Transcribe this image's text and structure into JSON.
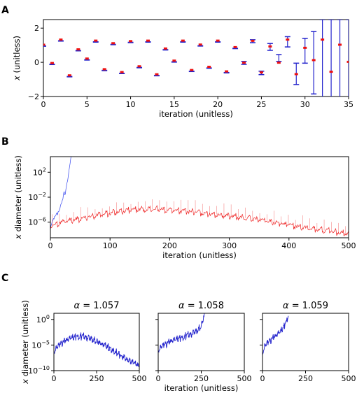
{
  "chart_data": [
    {
      "panel_label": "A",
      "type": "interval",
      "xlabel": "iteration (unitless)",
      "ylabel": "x (unitless)",
      "xlim": [
        0,
        35
      ],
      "ylim": [
        -2,
        2.5
      ],
      "xticks": [
        "0",
        "5",
        "10",
        "15",
        "20",
        "25",
        "30",
        "35"
      ],
      "yticks": [
        "−2",
        "0",
        "2"
      ],
      "colors": {
        "interval": "#2222cc",
        "point": "#ee1111"
      },
      "series": [
        {
          "name": "",
          "x": [
            0,
            1,
            2,
            3,
            4,
            5,
            6,
            7,
            8,
            9,
            10,
            11,
            12,
            13,
            14,
            15,
            16,
            17,
            18,
            19,
            20,
            21,
            22,
            23,
            24,
            25,
            26,
            27,
            28,
            29,
            30,
            31,
            32,
            33,
            34,
            35
          ],
          "lo": [
            0.98,
            -0.12,
            1.26,
            -0.84,
            0.69,
            0.15,
            1.2,
            -0.47,
            1.05,
            -0.64,
            1.17,
            -0.3,
            1.2,
            -0.77,
            0.74,
            0.03,
            1.2,
            -0.52,
            0.97,
            -0.33,
            1.2,
            -0.6,
            0.82,
            -0.12,
            1.15,
            -0.72,
            0.7,
            0.05,
            0.9,
            -1.3,
            -0.05,
            -1.85,
            -2.5,
            -2.5,
            -2.5,
            -2.5
          ],
          "hi": [
            1.02,
            -0.02,
            1.34,
            -0.74,
            0.77,
            0.23,
            1.28,
            -0.39,
            1.13,
            -0.56,
            1.25,
            -0.22,
            1.28,
            -0.69,
            0.82,
            0.11,
            1.28,
            -0.44,
            1.05,
            -0.25,
            1.28,
            -0.52,
            0.9,
            0.05,
            1.32,
            -0.52,
            1.1,
            0.45,
            1.5,
            -0.05,
            1.4,
            1.8,
            2.5,
            2.5,
            2.5,
            2.5
          ],
          "mid": [
            1.0,
            -0.07,
            1.3,
            -0.79,
            0.73,
            0.19,
            1.24,
            -0.43,
            1.09,
            -0.6,
            1.21,
            -0.26,
            1.24,
            -0.73,
            0.78,
            0.07,
            1.24,
            -0.48,
            1.01,
            -0.29,
            1.24,
            -0.56,
            0.86,
            -0.05,
            1.23,
            -0.62,
            0.9,
            -0.05,
            1.3,
            -0.72,
            0.82,
            0.1,
            1.3,
            -0.58,
            1.0,
            0.0
          ]
        }
      ]
    },
    {
      "panel_label": "B",
      "type": "line",
      "xlabel": "iteration (unitless)",
      "ylabel": "x diameter (unitless)",
      "xlim": [
        0,
        500
      ],
      "yscale": "log",
      "ylim_log10": [
        -8.5,
        4.5
      ],
      "xticks": [
        "0",
        "100",
        "200",
        "300",
        "400",
        "500"
      ],
      "ytick_labels": [
        "10^2",
        "10^-2",
        "10^-6"
      ],
      "ytick_log10": [
        2,
        -2,
        -6
      ],
      "colors": {
        "blue_series": "#3344ee",
        "red_series": "#ee2222"
      },
      "series": [
        {
          "name": "",
          "x": [
            0,
            5,
            10,
            15,
            20,
            25,
            30,
            35
          ],
          "log10_y": [
            -6.6,
            -5.4,
            -4.8,
            -3.8,
            -2.6,
            -1.0,
            1.5,
            4.5
          ]
        },
        {
          "name": "",
          "x": [
            0,
            25,
            50,
            75,
            100,
            125,
            150,
            175,
            200,
            225,
            250,
            275,
            300,
            325,
            350,
            375,
            400,
            425,
            450,
            475,
            500
          ],
          "log10_y": [
            -6.6,
            -5.8,
            -5.4,
            -4.9,
            -4.5,
            -4.1,
            -3.9,
            -3.9,
            -4.0,
            -4.2,
            -4.4,
            -4.7,
            -5.0,
            -5.3,
            -5.6,
            -6.0,
            -6.4,
            -6.8,
            -7.2,
            -7.5,
            -7.8
          ]
        }
      ]
    },
    {
      "panel_label": "C",
      "type": "line",
      "subtitle": "α = 1.057",
      "xlabel": "",
      "ylabel": "x diameter (unitless)",
      "xlim": [
        0,
        500
      ],
      "yscale": "log",
      "ylim_log10": [
        -10,
        1.2
      ],
      "xticks": [
        "0",
        "250",
        "500"
      ],
      "ytick_labels": [
        "10^0",
        "10^-5",
        "10^-10"
      ],
      "ytick_log10": [
        0,
        -5,
        -10
      ],
      "colors": {
        "line": "#2222cc"
      },
      "series": [
        {
          "name": "",
          "x": [
            0,
            25,
            50,
            75,
            100,
            125,
            150,
            175,
            200,
            225,
            250,
            275,
            300,
            325,
            350,
            375,
            400,
            425,
            450,
            475,
            500
          ],
          "log10_y": [
            -6.3,
            -5.0,
            -4.4,
            -4.0,
            -3.6,
            -3.3,
            -3.2,
            -3.3,
            -3.5,
            -3.8,
            -4.2,
            -4.6,
            -5.1,
            -5.6,
            -6.1,
            -6.6,
            -7.1,
            -7.6,
            -8.1,
            -8.6,
            -9.0
          ]
        }
      ]
    },
    {
      "type": "line",
      "subtitle": "α = 1.058",
      "xlabel": "iteration (unitless)",
      "xlim": [
        0,
        500
      ],
      "yscale": "log",
      "ylim_log10": [
        -10,
        1.2
      ],
      "xticks": [
        "0",
        "250",
        "500"
      ],
      "colors": {
        "line": "#2222cc"
      },
      "series": [
        {
          "name": "",
          "x": [
            0,
            25,
            50,
            75,
            100,
            125,
            150,
            175,
            200,
            225,
            250,
            260,
            270
          ],
          "log10_y": [
            -6.0,
            -5.0,
            -4.6,
            -4.2,
            -3.9,
            -3.6,
            -3.3,
            -3.0,
            -2.6,
            -2.1,
            -1.2,
            0.0,
            1.2
          ]
        }
      ]
    },
    {
      "type": "line",
      "subtitle": "α = 1.059",
      "xlabel": "",
      "xlim": [
        0,
        500
      ],
      "yscale": "log",
      "ylim_log10": [
        -10,
        1.2
      ],
      "xticks": [
        "0",
        "250",
        "500"
      ],
      "colors": {
        "line": "#2222cc"
      },
      "series": [
        {
          "name": "",
          "x": [
            0,
            15,
            30,
            45,
            60,
            75,
            90,
            105,
            120,
            135,
            145,
            150
          ],
          "log10_y": [
            -6.5,
            -5.0,
            -4.4,
            -4.0,
            -3.6,
            -3.2,
            -2.8,
            -2.3,
            -1.6,
            -0.6,
            0.4,
            1.2
          ]
        }
      ]
    }
  ]
}
